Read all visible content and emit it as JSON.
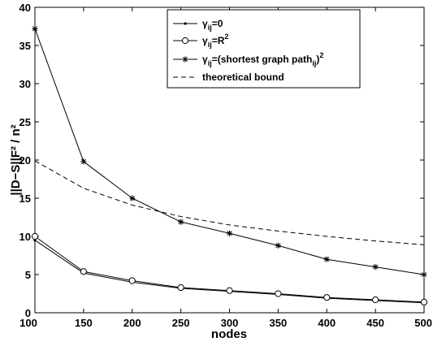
{
  "chart_data": {
    "type": "line",
    "xlabel": "nodes",
    "ylabel": "||D−S||F² / n²",
    "x": [
      100,
      150,
      200,
      250,
      300,
      350,
      400,
      450,
      500
    ],
    "xlim": [
      100,
      500
    ],
    "ylim": [
      0,
      40
    ],
    "xticks": [
      "100",
      "150",
      "200",
      "250",
      "300",
      "350",
      "400",
      "450",
      "500"
    ],
    "yticks": [
      "0",
      "5",
      "10",
      "15",
      "20",
      "25",
      "30",
      "35",
      "40"
    ],
    "grid": false,
    "legend_position": "top-right",
    "series": [
      {
        "key": "zero",
        "legend": {
          "main": "γ",
          "sub": "ij",
          "rest": "=0",
          "sup": "",
          "tail": ""
        },
        "marker": "dot",
        "dash": "solid",
        "values": [
          9.5,
          5.2,
          4.0,
          3.2,
          2.8,
          2.4,
          1.9,
          1.6,
          1.3
        ]
      },
      {
        "key": "r2",
        "legend": {
          "main": "γ",
          "sub": "ij",
          "rest": "=R",
          "sup": "2",
          "tail": ""
        },
        "marker": "circle",
        "dash": "solid",
        "values": [
          10.0,
          5.4,
          4.2,
          3.3,
          2.9,
          2.5,
          2.0,
          1.7,
          1.4
        ]
      },
      {
        "key": "shortest",
        "legend": {
          "main": "γ",
          "sub": "ij",
          "rest": "=(shortest graph path",
          "sub2": "ij",
          "tail": ")",
          "sup": "2"
        },
        "marker": "star",
        "dash": "solid",
        "values": [
          37.2,
          19.8,
          15.0,
          11.9,
          10.4,
          8.8,
          7.0,
          6.0,
          5.0
        ]
      },
      {
        "key": "bound",
        "legend": {
          "main": "theoretical bound",
          "sub": "",
          "rest": "",
          "sup": "",
          "tail": ""
        },
        "marker": "none",
        "dash": "dashed",
        "values": [
          19.9,
          16.3,
          14.1,
          12.6,
          11.5,
          10.7,
          10.0,
          9.4,
          8.9
        ]
      }
    ]
  }
}
